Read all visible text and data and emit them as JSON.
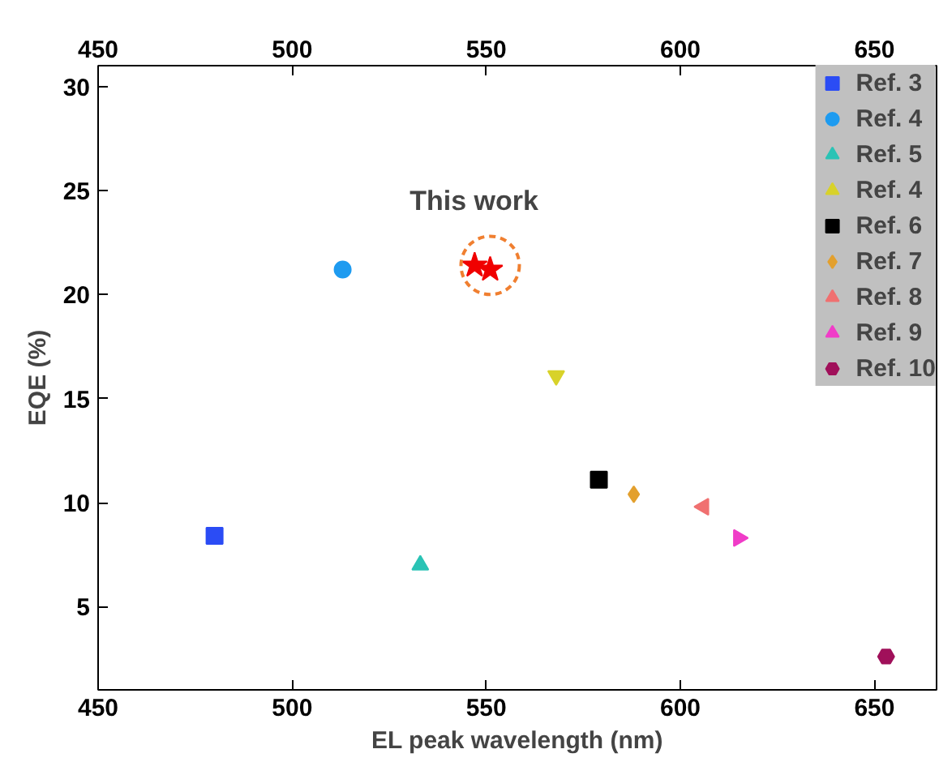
{
  "chart_data": {
    "type": "scatter",
    "xlabel": "EL peak wavelength (nm)",
    "ylabel": "EQE (%)",
    "xlim": [
      450,
      666
    ],
    "ylim": [
      1,
      31
    ],
    "xticks": [
      450,
      500,
      550,
      600,
      650
    ],
    "yticks": [
      5,
      10,
      15,
      20,
      25,
      30
    ],
    "x2lim": [
      450,
      666
    ],
    "x2ticks": [
      450,
      500,
      550,
      600,
      650
    ],
    "grid": false,
    "legend": "top right",
    "annotations": [
      {
        "text": "This work",
        "x": 551,
        "y": 21.4
      }
    ],
    "series": [
      {
        "x": [
          547,
          551
        ],
        "values": [
          21.4,
          21.2
        ],
        "color": "#f00000",
        "marker": "star"
      },
      {
        "name": "Ref. 3",
        "x": [
          480
        ],
        "values": [
          8.4
        ],
        "color": "#2b4cf5",
        "marker": "square"
      },
      {
        "name": "Ref. 4",
        "x": [
          513
        ],
        "values": [
          21.2
        ],
        "color": "#1e9bf0",
        "marker": "circle"
      },
      {
        "name": "Ref. 5",
        "x": [
          533
        ],
        "values": [
          7.0
        ],
        "color": "#2ac3b5",
        "marker": "triangle"
      },
      {
        "name": "Ref. 4",
        "x": [
          568
        ],
        "values": [
          16.1
        ],
        "color": "#d8d22a"
      },
      {
        "name": "Ref. 6",
        "x": [
          579
        ],
        "values": [
          11.1
        ],
        "color": "#000000",
        "marker": "square"
      },
      {
        "name": "Ref. 7",
        "x": [
          588
        ],
        "values": [
          10.4
        ],
        "color": "#e3a02e",
        "marker": "diamond"
      },
      {
        "name": "Ref. 8",
        "x": [
          606
        ],
        "values": [
          9.8
        ],
        "color": "#f07070"
      },
      {
        "name": "Ref. 9",
        "x": [
          615
        ],
        "values": [
          8.3
        ],
        "color": "#f03cc8"
      },
      {
        "name": "Ref. 10",
        "x": [
          653
        ],
        "values": [
          2.6
        ],
        "color": "#a0105a"
      }
    ]
  }
}
